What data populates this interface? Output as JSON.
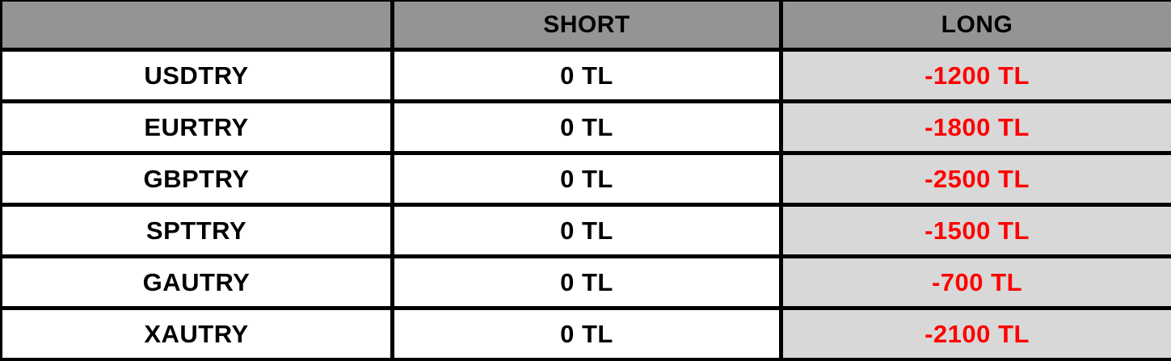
{
  "table": {
    "columns": [
      {
        "label": ""
      },
      {
        "label": "SHORT"
      },
      {
        "label": "LONG"
      }
    ],
    "rows": [
      {
        "instrument": "USDTRY",
        "short": "0 TL",
        "long": "-1200 TL"
      },
      {
        "instrument": "EURTRY",
        "short": "0 TL",
        "long": "-1800 TL"
      },
      {
        "instrument": "GBPTRY",
        "short": "0 TL",
        "long": "-2500 TL"
      },
      {
        "instrument": "SPTTRY",
        "short": "0 TL",
        "long": "-1500 TL"
      },
      {
        "instrument": "GAUTRY",
        "short": "0 TL",
        "long": "-700 TL"
      },
      {
        "instrument": "XAUTRY",
        "short": "0 TL",
        "long": "-2100 TL"
      }
    ],
    "colors": {
      "header_bg": "#949494",
      "long_cell_bg": "#d8d8d8",
      "row_bg": "#ffffff",
      "border": "#000000",
      "text": "#000000",
      "negative_text": "#ff0000"
    }
  },
  "chart_data": {
    "type": "table",
    "title": "",
    "columns": [
      "",
      "SHORT",
      "LONG"
    ],
    "rows": [
      [
        "USDTRY",
        "0 TL",
        "-1200 TL"
      ],
      [
        "EURTRY",
        "0 TL",
        "-1800 TL"
      ],
      [
        "GBPTRY",
        "0 TL",
        "-2500 TL"
      ],
      [
        "SPTTRY",
        "0 TL",
        "-1500 TL"
      ],
      [
        "GAUTRY",
        "0 TL",
        "-700 TL"
      ],
      [
        "XAUTRY",
        "0 TL",
        "-2100 TL"
      ]
    ],
    "series": [
      {
        "name": "SHORT",
        "values": [
          0,
          0,
          0,
          0,
          0,
          0
        ]
      },
      {
        "name": "LONG",
        "values": [
          -1200,
          -1800,
          -2500,
          -1500,
          -700,
          -2100
        ]
      }
    ],
    "categories": [
      "USDTRY",
      "EURTRY",
      "GBPTRY",
      "SPTTRY",
      "GAUTRY",
      "XAUTRY"
    ],
    "unit": "TL"
  }
}
